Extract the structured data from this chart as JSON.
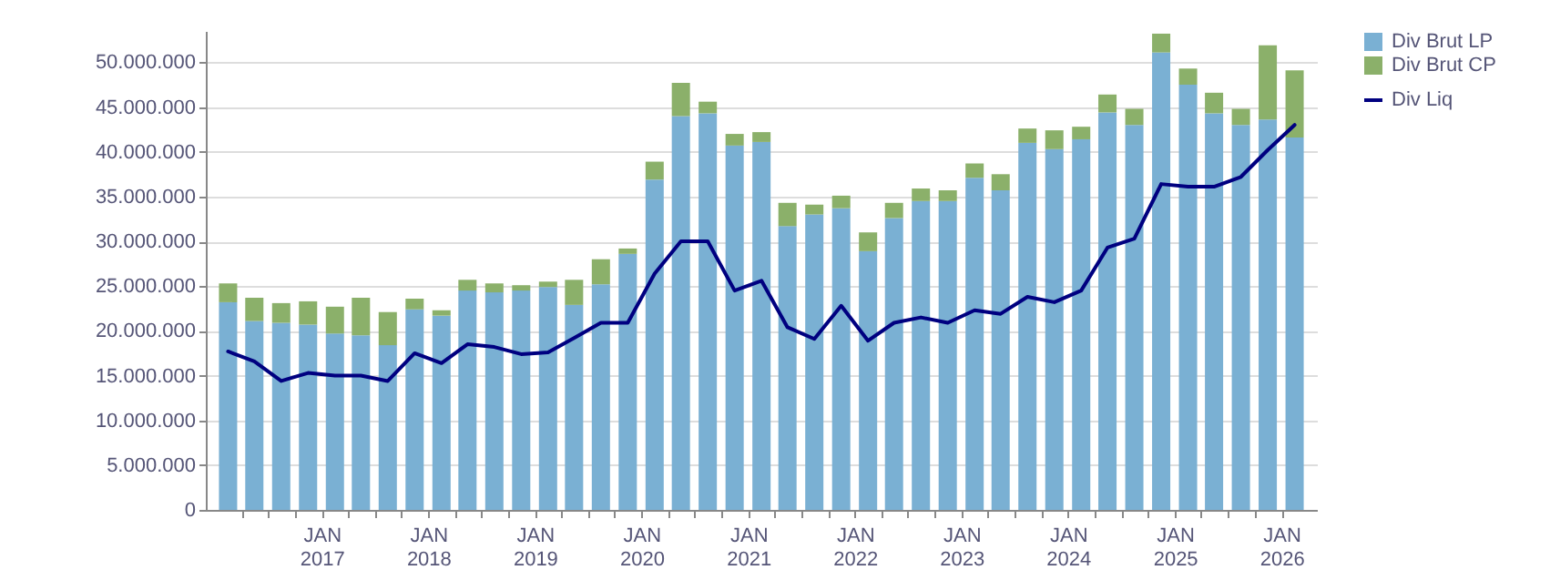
{
  "chart_data": {
    "type": "bar",
    "stacked": true,
    "grid": true,
    "legend": "top right",
    "x": [
      "2016-02-15",
      "2016-05-15",
      "2016-08-15",
      "2016-11-15",
      "2017-02-15",
      "2017-05-15",
      "2017-08-15",
      "2017-11-15",
      "2018-02-15",
      "2018-05-15",
      "2018-08-15",
      "2018-11-15",
      "2019-02-15",
      "2019-05-15",
      "2019-08-15",
      "2019-11-15",
      "2020-02-15",
      "2020-05-15",
      "2020-08-15",
      "2020-11-15",
      "2021-02-15",
      "2021-05-15",
      "2021-08-15",
      "2021-11-15",
      "2022-02-15",
      "2022-05-15",
      "2022-08-15",
      "2022-11-15",
      "2023-02-15",
      "2023-05-15",
      "2023-08-15",
      "2023-11-15",
      "2024-02-15",
      "2024-05-15",
      "2024-08-15",
      "2024-11-15",
      "2025-02-15",
      "2025-05-15",
      "2025-08-15",
      "2025-11-15",
      "2026-02-15"
    ],
    "series": [
      {
        "name": "Div Brut LP",
        "color": "#7ab0d3",
        "values": [
          23200000,
          21100000,
          20900000,
          20700000,
          19700000,
          19500000,
          18400000,
          22400000,
          21700000,
          24500000,
          24300000,
          24500000,
          24900000,
          22900000,
          25200000,
          28600000,
          36900000,
          44000000,
          44300000,
          40700000,
          41100000,
          31700000,
          33000000,
          33700000,
          28900000,
          32600000,
          34500000,
          34500000,
          37100000,
          35700000,
          41000000,
          40300000,
          41400000,
          44400000,
          43000000,
          51100000,
          47500000,
          44300000,
          43000000,
          43600000,
          41600000
        ]
      },
      {
        "name": "Div Brut CP",
        "color": "#8bb06a",
        "values": [
          2100000,
          2600000,
          2200000,
          2600000,
          3000000,
          4200000,
          3700000,
          1200000,
          600000,
          1200000,
          1000000,
          600000,
          600000,
          2800000,
          2800000,
          600000,
          2000000,
          3700000,
          1300000,
          1300000,
          1100000,
          2600000,
          1100000,
          1400000,
          2100000,
          1700000,
          1400000,
          1200000,
          1600000,
          1800000,
          1600000,
          2100000,
          1400000,
          2000000,
          1800000,
          2100000,
          1800000,
          2300000,
          1800000,
          8300000,
          7500000
        ]
      },
      {
        "name": "Div Liq",
        "type": "line",
        "color": "#000080",
        "values": [
          17700000,
          16600000,
          14400000,
          15300000,
          15000000,
          15000000,
          14400000,
          17500000,
          16400000,
          18500000,
          18200000,
          17400000,
          17600000,
          19200000,
          20900000,
          20900000,
          26400000,
          30000000,
          30000000,
          24500000,
          25600000,
          20400000,
          19100000,
          22800000,
          18900000,
          20900000,
          21500000,
          20900000,
          22300000,
          21900000,
          23800000,
          23200000,
          24500000,
          29300000,
          30300000,
          36400000,
          36100000,
          36100000,
          37200000,
          40200000,
          43000000
        ]
      }
    ],
    "xlim": [
      "2016-01-01",
      "2026-04-01"
    ],
    "xticks": [
      {
        "value": "2016-04-01",
        "label": null
      },
      {
        "value": "2016-07-01",
        "label": null
      },
      {
        "value": "2016-10-01",
        "label": null
      },
      {
        "value": "2017-01-01",
        "label": "JAN 2017"
      },
      {
        "value": "2017-04-01",
        "label": null
      },
      {
        "value": "2017-07-01",
        "label": null
      },
      {
        "value": "2017-10-01",
        "label": null
      },
      {
        "value": "2018-01-01",
        "label": "JAN 2018"
      },
      {
        "value": "2018-04-01",
        "label": null
      },
      {
        "value": "2018-07-01",
        "label": null
      },
      {
        "value": "2018-10-01",
        "label": null
      },
      {
        "value": "2019-01-01",
        "label": "JAN 2019"
      },
      {
        "value": "2019-04-01",
        "label": null
      },
      {
        "value": "2019-07-01",
        "label": null
      },
      {
        "value": "2019-10-01",
        "label": null
      },
      {
        "value": "2020-01-01",
        "label": "JAN 2020"
      },
      {
        "value": "2020-04-01",
        "label": null
      },
      {
        "value": "2020-07-01",
        "label": null
      },
      {
        "value": "2020-10-01",
        "label": null
      },
      {
        "value": "2021-01-01",
        "label": "JAN 2021"
      },
      {
        "value": "2021-04-01",
        "label": null
      },
      {
        "value": "2021-07-01",
        "label": null
      },
      {
        "value": "2021-10-01",
        "label": null
      },
      {
        "value": "2022-01-01",
        "label": "JAN 2022"
      },
      {
        "value": "2022-04-01",
        "label": null
      },
      {
        "value": "2022-07-01",
        "label": null
      },
      {
        "value": "2022-10-01",
        "label": null
      },
      {
        "value": "2023-01-01",
        "label": "JAN 2023"
      },
      {
        "value": "2023-04-01",
        "label": null
      },
      {
        "value": "2023-07-01",
        "label": null
      },
      {
        "value": "2023-10-01",
        "label": null
      },
      {
        "value": "2024-01-01",
        "label": "JAN 2024"
      },
      {
        "value": "2024-04-01",
        "label": null
      },
      {
        "value": "2024-07-01",
        "label": null
      },
      {
        "value": "2024-10-01",
        "label": null
      },
      {
        "value": "2025-01-01",
        "label": "JAN 2025"
      },
      {
        "value": "2025-04-01",
        "label": null
      },
      {
        "value": "2025-07-01",
        "label": null
      },
      {
        "value": "2025-10-01",
        "label": null
      },
      {
        "value": "2026-01-01",
        "label": "JAN 2026"
      }
    ],
    "ylim": [
      0,
      53500000
    ],
    "yticks": [
      0,
      {
        "value": 5000000,
        "label": "5.000.000"
      },
      {
        "value": 10000000,
        "label": "10.000.000"
      },
      {
        "value": 15000000,
        "label": "15.000.000"
      },
      {
        "value": 20000000,
        "label": "20.000.000"
      },
      {
        "value": 25000000,
        "label": "25.000.000"
      },
      {
        "value": 30000000,
        "label": "30.000.000"
      },
      {
        "value": 35000000,
        "label": "35.000.000"
      },
      {
        "value": 40000000,
        "label": "40.000.000"
      },
      {
        "value": 45000000,
        "label": "45.000.000"
      },
      {
        "value": 50000000,
        "label": "50.000.000"
      }
    ]
  }
}
